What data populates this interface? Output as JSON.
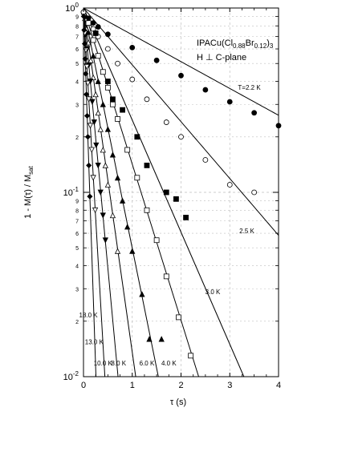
{
  "chart_data": {
    "type": "scatter",
    "title": "",
    "xlabel": "τ (s)",
    "ylabel": "1 - M(τ) / M",
    "ylabel_sub": "sat",
    "xlim": [
      0,
      4
    ],
    "ylim": [
      0.01,
      1
    ],
    "yscale": "log",
    "grid": true,
    "x_ticks": [
      "0",
      "1",
      "2",
      "3",
      "4"
    ],
    "y_major_ticks": [
      {
        "base": "10",
        "exp": "0"
      },
      {
        "base": "10",
        "exp": "-1"
      },
      {
        "base": "10",
        "exp": "-2"
      }
    ],
    "y_minor_labels": [
      "2",
      "3",
      "4",
      "5",
      "6",
      "7",
      "8",
      "9"
    ],
    "annotation": {
      "line1": {
        "main": "IPACu(Cl",
        "sub1": "0.88",
        "mid": "Br",
        "sub2": "0.12",
        "close": ")",
        "sub3": "3"
      },
      "line2": "H ⊥ C-plane"
    },
    "series": [
      {
        "name": "T=2.2 K",
        "marker": "filled-circle",
        "rate": 0.335,
        "x": [
          0.0,
          0.1,
          0.2,
          0.3,
          0.5,
          1.0,
          1.5,
          2.0,
          2.5,
          3.0,
          3.5,
          4.0
        ],
        "y": [
          0.95,
          0.88,
          0.83,
          0.79,
          0.72,
          0.61,
          0.52,
          0.43,
          0.36,
          0.31,
          0.27,
          0.23
        ]
      },
      {
        "name": "2.5 K",
        "marker": "open-circle",
        "rate": 0.71,
        "x": [
          0.0,
          0.1,
          0.2,
          0.3,
          0.5,
          0.7,
          1.0,
          1.3,
          1.7,
          2.0,
          2.5,
          3.0,
          3.5
        ],
        "y": [
          0.95,
          0.83,
          0.77,
          0.7,
          0.6,
          0.5,
          0.41,
          0.32,
          0.24,
          0.2,
          0.15,
          0.11,
          0.1
        ]
      },
      {
        "name": "3.0 K",
        "marker": "filled-square",
        "rate": 1.4,
        "x": [
          0.25,
          0.5,
          0.6,
          0.8,
          1.1,
          1.3,
          1.7,
          1.9,
          2.1
        ],
        "y": [
          0.73,
          0.4,
          0.32,
          0.28,
          0.2,
          0.14,
          0.1,
          0.092,
          0.073
        ]
      },
      {
        "name": "4.0 K",
        "marker": "open-square",
        "rate": 1.95,
        "x": [
          0.1,
          0.2,
          0.3,
          0.4,
          0.5,
          0.6,
          0.7,
          0.9,
          1.1,
          1.3,
          1.5,
          1.7,
          1.95,
          2.2
        ],
        "y": [
          0.83,
          0.67,
          0.55,
          0.45,
          0.37,
          0.3,
          0.25,
          0.17,
          0.12,
          0.08,
          0.055,
          0.035,
          0.021,
          0.013
        ]
      },
      {
        "name": "6.0 K",
        "marker": "filled-triangle",
        "rate": 3.0,
        "x": [
          0.05,
          0.1,
          0.2,
          0.3,
          0.4,
          0.5,
          0.6,
          0.7,
          0.8,
          0.9,
          1.0,
          1.2,
          1.35,
          1.6
        ],
        "y": [
          0.88,
          0.74,
          0.55,
          0.4,
          0.3,
          0.22,
          0.16,
          0.12,
          0.09,
          0.065,
          0.048,
          0.028,
          0.016,
          0.016
        ]
      },
      {
        "name": "8.0 K",
        "marker": "open-triangle",
        "rate": 4.3,
        "x": [
          0.03,
          0.06,
          0.1,
          0.15,
          0.2,
          0.25,
          0.3,
          0.35,
          0.4,
          0.45,
          0.5,
          0.6,
          0.7
        ],
        "y": [
          0.88,
          0.77,
          0.65,
          0.52,
          0.42,
          0.34,
          0.27,
          0.22,
          0.17,
          0.14,
          0.11,
          0.075,
          0.048
        ]
      },
      {
        "name": "10.0 K",
        "marker": "filled-triangle-down",
        "rate": 6.5,
        "x": [
          0.02,
          0.05,
          0.08,
          0.11,
          0.14,
          0.18,
          0.22,
          0.26,
          0.3,
          0.35,
          0.4,
          0.45
        ],
        "y": [
          0.88,
          0.72,
          0.6,
          0.49,
          0.4,
          0.31,
          0.24,
          0.18,
          0.14,
          0.1,
          0.075,
          0.055
        ]
      },
      {
        "name": "13.0 K",
        "marker": "open-triangle-down",
        "rate": 10.5,
        "x": [
          0.01,
          0.03,
          0.05,
          0.07,
          0.09,
          0.11,
          0.14,
          0.17,
          0.2,
          0.24
        ],
        "y": [
          0.9,
          0.73,
          0.59,
          0.48,
          0.39,
          0.32,
          0.23,
          0.17,
          0.12,
          0.08
        ]
      },
      {
        "name": "18.0 K",
        "marker": "filled-diamond",
        "rate": 18.0,
        "x": [
          0.005,
          0.015,
          0.025,
          0.035,
          0.045,
          0.06,
          0.075,
          0.09,
          0.11,
          0.13
        ],
        "y": [
          0.9,
          0.76,
          0.64,
          0.53,
          0.44,
          0.34,
          0.26,
          0.2,
          0.14,
          0.095
        ]
      }
    ]
  },
  "colors": {
    "ink": "#000000",
    "grid": "#bfbfbf",
    "background": "#ffffff"
  }
}
